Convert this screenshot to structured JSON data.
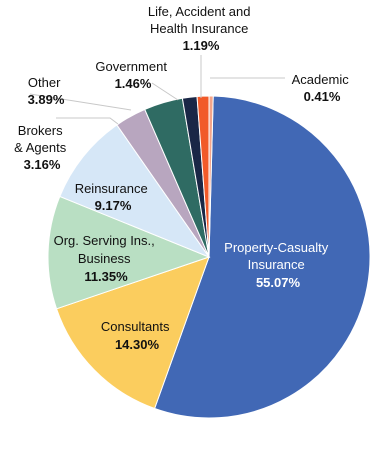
{
  "chart_data": {
    "type": "pie",
    "slices": [
      {
        "label": [
          "Property-Casualty",
          "Insurance"
        ],
        "value": 55.07,
        "value_text": "55.07%",
        "color": "#4168b5",
        "label_color": "#ffffff"
      },
      {
        "label": [
          "Consultants"
        ],
        "value": 14.3,
        "value_text": "14.30%",
        "color": "#fbcd5e",
        "label_color": "#111111"
      },
      {
        "label": [
          "Org. Serving Ins.,",
          "Business"
        ],
        "value": 11.35,
        "value_text": "11.35%",
        "color": "#b9dfc3",
        "label_color": "#111111"
      },
      {
        "label": [
          "Reinsurance"
        ],
        "value": 9.17,
        "value_text": "9.17%",
        "color": "#d6e7f7",
        "label_color": "#111111"
      },
      {
        "label": [
          "Brokers",
          "& Agents"
        ],
        "value": 3.16,
        "value_text": "3.16%",
        "color": "#b8a6bf",
        "label_color": "#111111"
      },
      {
        "label": [
          "Other"
        ],
        "value": 3.89,
        "value_text": "3.89%",
        "color": "#2f6b63",
        "label_color": "#111111"
      },
      {
        "label": [
          "Government"
        ],
        "value": 1.46,
        "value_text": "1.46%",
        "color": "#1a2746",
        "label_color": "#111111"
      },
      {
        "label": [
          "Life, Accident and",
          "Health Insurance"
        ],
        "value": 1.19,
        "value_text": "1.19%",
        "color": "#f15a29",
        "label_color": "#111111"
      },
      {
        "label": [
          "Academic"
        ],
        "value": 0.41,
        "value_text": "0.41%",
        "color": "#f4a58a",
        "label_color": "#111111"
      }
    ]
  }
}
